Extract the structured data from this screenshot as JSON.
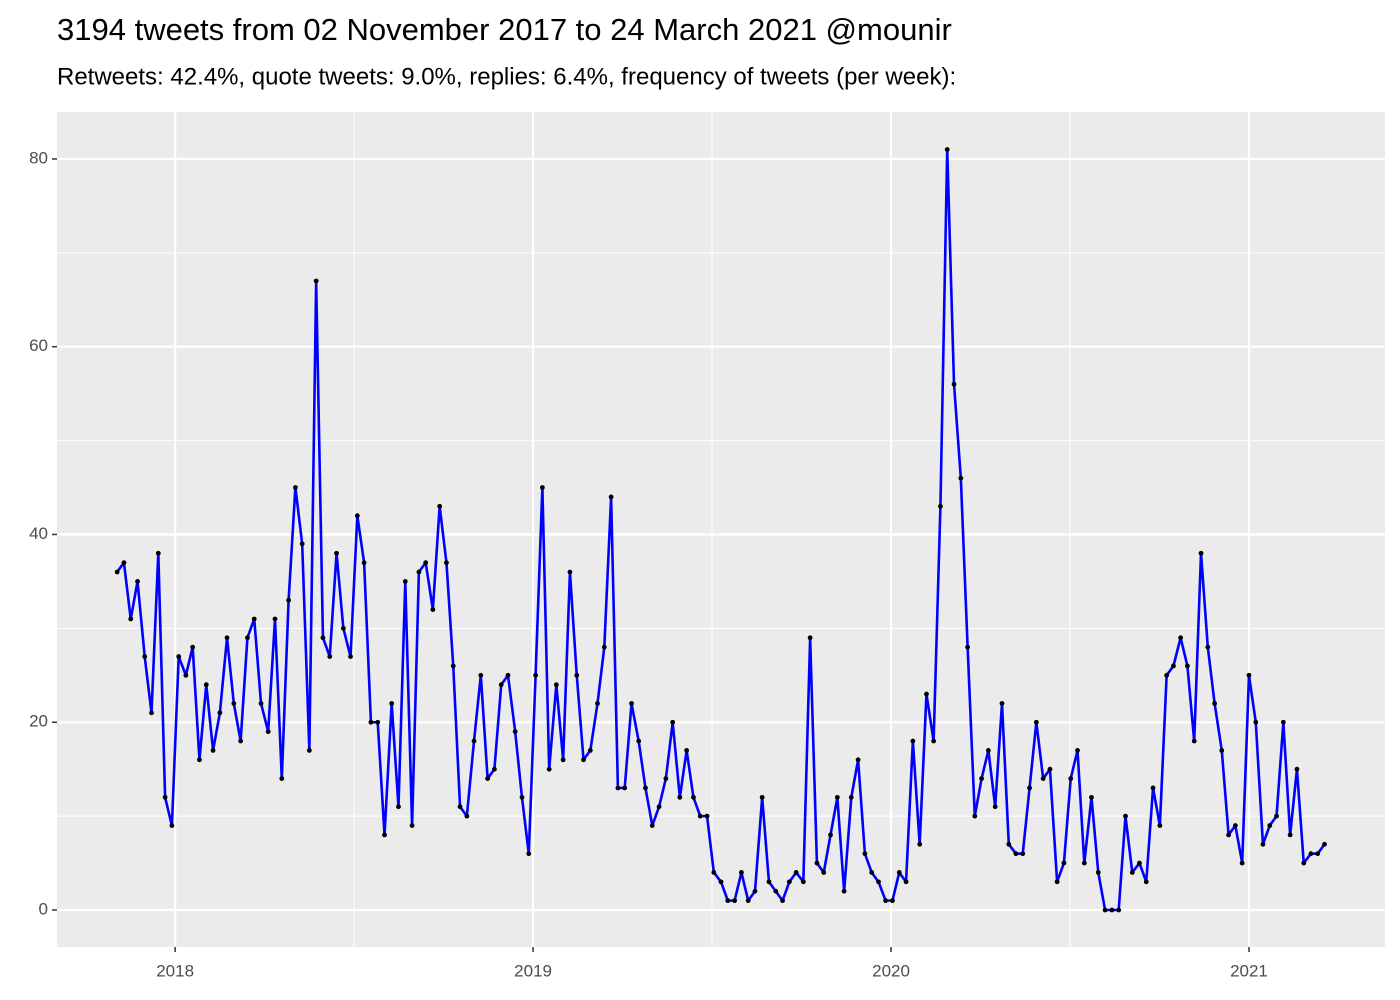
{
  "chart_data": {
    "type": "line",
    "title": "3194 tweets from 02 November 2017 to 24 March 2021 @mounir",
    "subtitle": "Retweets: 42.4%, quote tweets: 9.0%, replies: 6.4%, frequency of tweets (per week):",
    "color": "#0000ff",
    "point_color": "#000000",
    "grid": true,
    "xlim": [
      2017.67,
      2021.38
    ],
    "xticks": [
      2018,
      2019,
      2020,
      2021
    ],
    "ylim": [
      -3.94,
      85.0
    ],
    "yticks": [
      0,
      20,
      40,
      60,
      80
    ],
    "x": [
      2017.838,
      2017.857,
      2017.876,
      2017.895,
      2017.915,
      2017.934,
      2017.953,
      2017.972,
      2017.991,
      2018.01,
      2018.03,
      2018.049,
      2018.068,
      2018.087,
      2018.106,
      2018.125,
      2018.145,
      2018.164,
      2018.183,
      2018.202,
      2018.221,
      2018.24,
      2018.26,
      2018.279,
      2018.298,
      2018.317,
      2018.336,
      2018.355,
      2018.375,
      2018.394,
      2018.413,
      2018.432,
      2018.451,
      2018.47,
      2018.49,
      2018.509,
      2018.528,
      2018.547,
      2018.566,
      2018.585,
      2018.605,
      2018.624,
      2018.643,
      2018.662,
      2018.681,
      2018.7,
      2018.72,
      2018.739,
      2018.758,
      2018.777,
      2018.796,
      2018.815,
      2018.835,
      2018.854,
      2018.873,
      2018.892,
      2018.911,
      2018.93,
      2018.95,
      2018.969,
      2018.988,
      2019.007,
      2019.026,
      2019.045,
      2019.065,
      2019.084,
      2019.103,
      2019.122,
      2019.141,
      2019.16,
      2019.18,
      2019.199,
      2019.218,
      2019.237,
      2019.256,
      2019.275,
      2019.295,
      2019.314,
      2019.333,
      2019.352,
      2019.371,
      2019.39,
      2019.41,
      2019.429,
      2019.448,
      2019.467,
      2019.486,
      2019.505,
      2019.525,
      2019.544,
      2019.563,
      2019.582,
      2019.601,
      2019.62,
      2019.64,
      2019.659,
      2019.678,
      2019.697,
      2019.716,
      2019.735,
      2019.755,
      2019.774,
      2019.793,
      2019.812,
      2019.831,
      2019.85,
      2019.869,
      2019.889,
      2019.908,
      2019.927,
      2019.946,
      2019.965,
      2019.985,
      2020.004,
      2020.023,
      2020.042,
      2020.061,
      2020.08,
      2020.099,
      2020.119,
      2020.138,
      2020.157,
      2020.176,
      2020.195,
      2020.214,
      2020.234,
      2020.253,
      2020.272,
      2020.291,
      2020.31,
      2020.329,
      2020.349,
      2020.368,
      2020.387,
      2020.406,
      2020.425,
      2020.444,
      2020.464,
      2020.483,
      2020.502,
      2020.521,
      2020.54,
      2020.56,
      2020.579,
      2020.598,
      2020.617,
      2020.636,
      2020.655,
      2020.674,
      2020.694,
      2020.713,
      2020.732,
      2020.751,
      2020.77,
      2020.789,
      2020.809,
      2020.828,
      2020.847,
      2020.866,
      2020.885,
      2020.904,
      2020.924,
      2020.943,
      2020.962,
      2020.981,
      2021.0,
      2021.019,
      2021.039,
      2021.058,
      2021.077,
      2021.096,
      2021.115,
      2021.134,
      2021.153,
      2021.173,
      2021.192,
      2021.211
    ],
    "values": [
      36,
      37,
      31,
      35,
      27,
      21,
      38,
      12,
      9,
      27,
      25,
      28,
      16,
      24,
      17,
      21,
      29,
      22,
      18,
      29,
      31,
      22,
      19,
      31,
      14,
      33,
      45,
      39,
      17,
      67,
      29,
      27,
      38,
      30,
      27,
      42,
      37,
      20,
      20,
      8,
      22,
      11,
      35,
      9,
      36,
      37,
      32,
      43,
      37,
      26,
      11,
      10,
      18,
      25,
      14,
      15,
      24,
      25,
      19,
      12,
      6,
      25,
      45,
      15,
      24,
      16,
      36,
      25,
      16,
      17,
      22,
      28,
      44,
      13,
      13,
      22,
      18,
      13,
      9,
      11,
      14,
      20,
      12,
      17,
      12,
      10,
      10,
      4,
      3,
      1,
      1,
      4,
      1,
      2,
      12,
      3,
      2,
      1,
      3,
      4,
      3,
      29,
      5,
      4,
      8,
      12,
      2,
      12,
      16,
      6,
      4,
      3,
      1,
      1,
      4,
      3,
      18,
      7,
      23,
      18,
      43,
      81,
      56,
      46,
      28,
      10,
      14,
      17,
      11,
      22,
      7,
      6,
      6,
      13,
      20,
      14,
      15,
      3,
      5,
      14,
      17,
      5,
      12,
      4,
      0,
      0,
      0,
      10,
      4,
      5,
      3,
      13,
      9,
      25,
      26,
      29,
      26,
      18,
      38,
      28,
      22,
      17,
      8,
      9,
      5,
      25,
      20,
      7,
      9,
      10,
      20,
      8,
      15,
      5,
      6,
      6,
      7
    ]
  }
}
